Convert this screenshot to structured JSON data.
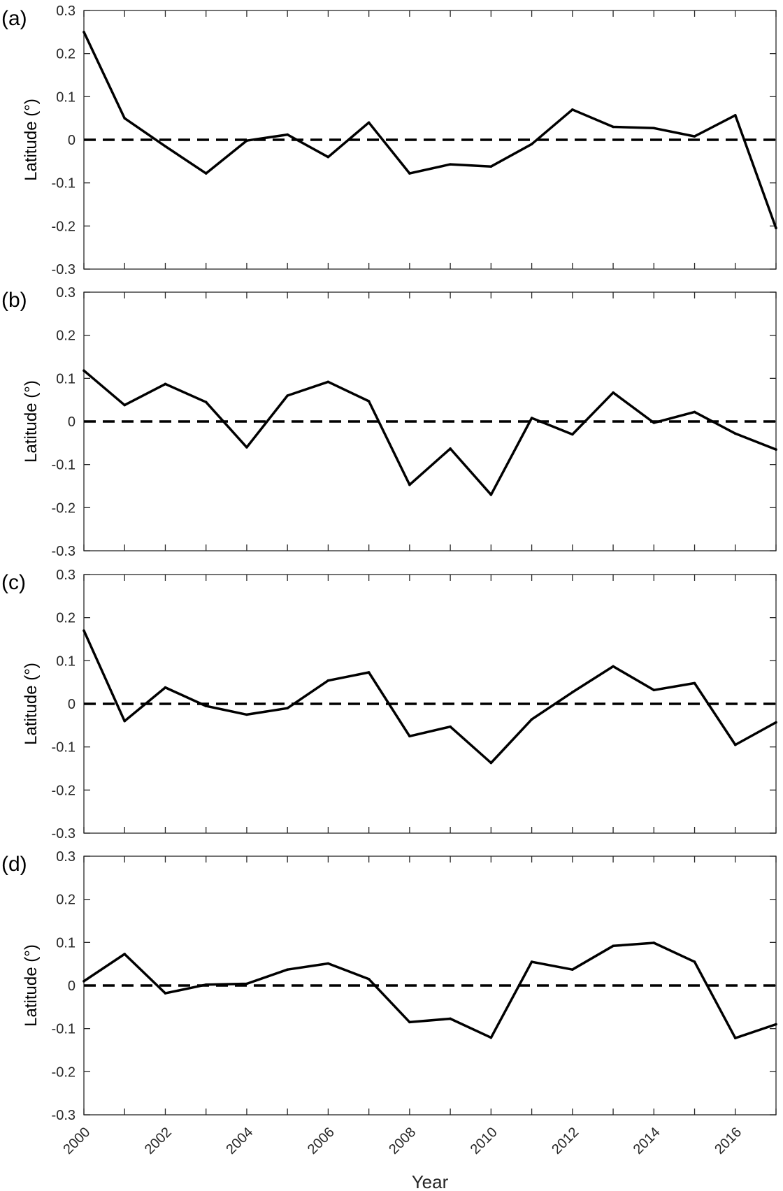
{
  "chart_data": [
    {
      "type": "line",
      "panel_label": "(a)",
      "xlabel": "",
      "ylabel": "Latitude (°)",
      "xlim": [
        2000,
        2017
      ],
      "ylim": [
        -0.3,
        0.3
      ],
      "yticks": [
        "0.3",
        "0.2",
        "0.1",
        "0",
        "-0.1",
        "-0.2",
        "-0.3"
      ],
      "reference_line": {
        "y": 0,
        "style": "dashed"
      },
      "x": [
        2000,
        2001,
        2002,
        2003,
        2004,
        2005,
        2006,
        2007,
        2008,
        2009,
        2010,
        2011,
        2012,
        2013,
        2014,
        2015,
        2016,
        2017
      ],
      "values": [
        0.25,
        0.05,
        -0.015,
        -0.078,
        -0.002,
        0.012,
        -0.04,
        0.04,
        -0.078,
        -0.057,
        -0.062,
        -0.01,
        0.07,
        0.03,
        0.027,
        0.008,
        0.057,
        -0.205
      ]
    },
    {
      "type": "line",
      "panel_label": "(b)",
      "xlabel": "",
      "ylabel": "Latitude (°)",
      "xlim": [
        2000,
        2017
      ],
      "ylim": [
        -0.3,
        0.3
      ],
      "yticks": [
        "0.3",
        "0.2",
        "0.1",
        "0",
        "-0.1",
        "-0.2",
        "-0.3"
      ],
      "reference_line": {
        "y": 0,
        "style": "dashed"
      },
      "x": [
        2000,
        2001,
        2002,
        2003,
        2004,
        2005,
        2006,
        2007,
        2008,
        2009,
        2010,
        2011,
        2012,
        2013,
        2014,
        2015,
        2016,
        2017
      ],
      "values": [
        0.118,
        0.038,
        0.087,
        0.045,
        -0.06,
        0.06,
        0.092,
        0.047,
        -0.147,
        -0.063,
        -0.17,
        0.008,
        -0.03,
        0.067,
        -0.003,
        0.022,
        -0.028,
        -0.065
      ]
    },
    {
      "type": "line",
      "panel_label": "(c)",
      "xlabel": "",
      "ylabel": "Latitude (°)",
      "xlim": [
        2000,
        2017
      ],
      "ylim": [
        -0.3,
        0.3
      ],
      "yticks": [
        "0.3",
        "0.2",
        "0.1",
        "0",
        "-0.1",
        "-0.2",
        "-0.3"
      ],
      "reference_line": {
        "y": 0,
        "style": "dashed"
      },
      "x": [
        2000,
        2001,
        2002,
        2003,
        2004,
        2005,
        2006,
        2007,
        2008,
        2009,
        2010,
        2011,
        2012,
        2013,
        2014,
        2015,
        2016,
        2017
      ],
      "values": [
        0.17,
        -0.04,
        0.038,
        -0.005,
        -0.025,
        -0.01,
        0.054,
        0.073,
        -0.075,
        -0.053,
        -0.137,
        -0.036,
        0.027,
        0.087,
        0.032,
        0.048,
        -0.095,
        -0.043
      ]
    },
    {
      "type": "line",
      "panel_label": "(d)",
      "xlabel": "Year",
      "ylabel": "Latitude (°)",
      "xlim": [
        2000,
        2017
      ],
      "ylim": [
        -0.3,
        0.3
      ],
      "yticks": [
        "0.3",
        "0.2",
        "0.1",
        "0",
        "-0.1",
        "-0.2",
        "-0.3"
      ],
      "xticks": [
        "2000",
        "2002",
        "2004",
        "2006",
        "2008",
        "2010",
        "2012",
        "2014",
        "2016"
      ],
      "reference_line": {
        "y": 0,
        "style": "dashed"
      },
      "x": [
        2000,
        2001,
        2002,
        2003,
        2004,
        2005,
        2006,
        2007,
        2008,
        2009,
        2010,
        2011,
        2012,
        2013,
        2014,
        2015,
        2016,
        2017
      ],
      "values": [
        0.01,
        0.073,
        -0.018,
        0.002,
        0.004,
        0.037,
        0.051,
        0.015,
        -0.085,
        -0.077,
        -0.121,
        0.055,
        0.037,
        0.092,
        0.099,
        0.055,
        -0.122,
        -0.09
      ]
    }
  ]
}
